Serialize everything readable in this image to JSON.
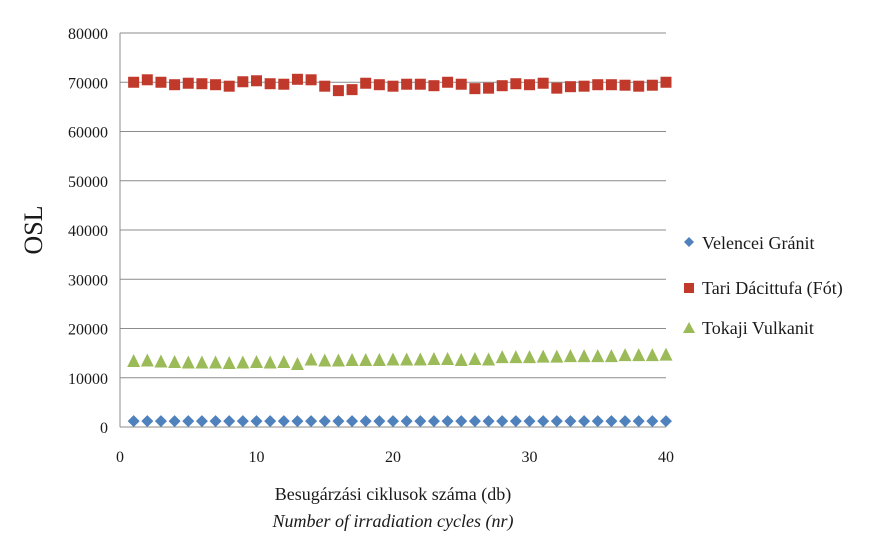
{
  "chart_data": {
    "type": "scatter",
    "ylabel": "OSL",
    "xlabel": "Besugárzási ciklusok száma (db)",
    "xlabel_secondary": "Number of irradiation cycles (nr)",
    "xlim": [
      0,
      40
    ],
    "ylim": [
      0,
      80000
    ],
    "xticks": [
      "0",
      "10",
      "20",
      "30",
      "40"
    ],
    "yticks": [
      "0",
      "10000",
      "20000",
      "30000",
      "40000",
      "50000",
      "60000",
      "70000",
      "80000"
    ],
    "grid": "horizontal",
    "legend_position": "right",
    "series": [
      {
        "name": "Velencei Gránit",
        "marker": "diamond",
        "color": "#4f81bd",
        "x": [
          1,
          2,
          3,
          4,
          5,
          6,
          7,
          8,
          9,
          10,
          11,
          12,
          13,
          14,
          15,
          16,
          17,
          18,
          19,
          20,
          21,
          22,
          23,
          24,
          25,
          26,
          27,
          28,
          29,
          30,
          31,
          32,
          33,
          34,
          35,
          36,
          37,
          38,
          39,
          40
        ],
        "y": [
          1200,
          1200,
          1200,
          1200,
          1200,
          1200,
          1200,
          1200,
          1200,
          1200,
          1200,
          1200,
          1200,
          1200,
          1200,
          1200,
          1200,
          1200,
          1200,
          1200,
          1200,
          1200,
          1200,
          1200,
          1200,
          1200,
          1200,
          1200,
          1200,
          1200,
          1200,
          1200,
          1200,
          1200,
          1200,
          1200,
          1200,
          1200,
          1200,
          1200
        ]
      },
      {
        "name": "Tari Dácittufa (Fót)",
        "marker": "square",
        "color": "#c0392b",
        "x": [
          1,
          2,
          3,
          4,
          5,
          6,
          7,
          8,
          9,
          10,
          11,
          12,
          13,
          14,
          15,
          16,
          17,
          18,
          19,
          20,
          21,
          22,
          23,
          24,
          25,
          26,
          27,
          28,
          29,
          30,
          31,
          32,
          33,
          34,
          35,
          36,
          37,
          38,
          39,
          40
        ],
        "y": [
          70000,
          70500,
          70000,
          69500,
          69800,
          69700,
          69500,
          69200,
          70100,
          70300,
          69700,
          69600,
          70600,
          70500,
          69200,
          68300,
          68500,
          69800,
          69500,
          69200,
          69600,
          69600,
          69300,
          70000,
          69600,
          68700,
          68800,
          69300,
          69700,
          69500,
          69800,
          68800,
          69100,
          69200,
          69500,
          69500,
          69400,
          69200,
          69400,
          70000
        ]
      },
      {
        "name": "Tokaji Vulkanit",
        "marker": "triangle",
        "color": "#9bbb59",
        "x": [
          1,
          2,
          3,
          4,
          5,
          6,
          7,
          8,
          9,
          10,
          11,
          12,
          13,
          14,
          15,
          16,
          17,
          18,
          19,
          20,
          21,
          22,
          23,
          24,
          25,
          26,
          27,
          28,
          29,
          30,
          31,
          32,
          33,
          34,
          35,
          36,
          37,
          38,
          39,
          40
        ],
        "y": [
          13400,
          13500,
          13300,
          13200,
          13100,
          13100,
          13100,
          13000,
          13100,
          13200,
          13100,
          13200,
          12800,
          13700,
          13500,
          13500,
          13600,
          13600,
          13600,
          13700,
          13700,
          13700,
          13800,
          13800,
          13600,
          13800,
          13700,
          14200,
          14200,
          14200,
          14300,
          14300,
          14400,
          14400,
          14400,
          14400,
          14600,
          14600,
          14600,
          14700
        ]
      }
    ]
  }
}
